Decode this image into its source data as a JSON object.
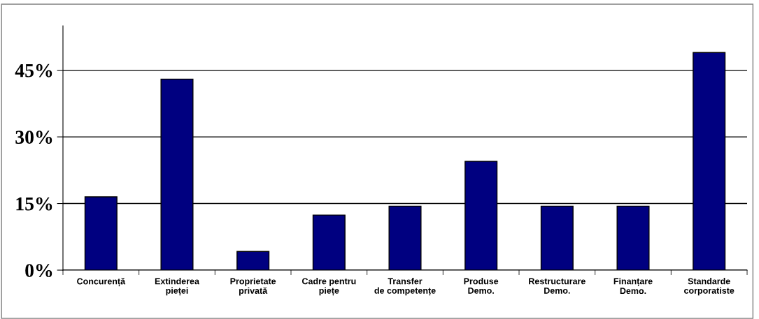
{
  "chart_data": {
    "type": "bar",
    "categories": [
      "Concurență",
      "Extinderea\npieței",
      "Proprietate\nprivată",
      "Cadre pentru\npiețe",
      "Transfer\nde competențe",
      "Produse\nDemo.",
      "Restructurare\nDemo.",
      "Finanțare\nDemo.",
      "Standarde\ncorporatiste"
    ],
    "values": [
      16.5,
      43,
      4.2,
      12.4,
      14.4,
      24.5,
      14.4,
      14.4,
      49
    ],
    "color": "#000080",
    "ylim": [
      0,
      55
    ],
    "yticks": [
      {
        "value": 0,
        "label": "0%"
      },
      {
        "value": 15,
        "label": "15%"
      },
      {
        "value": 30,
        "label": "30%"
      },
      {
        "value": 45,
        "label": "45%"
      }
    ],
    "grid": "y"
  }
}
